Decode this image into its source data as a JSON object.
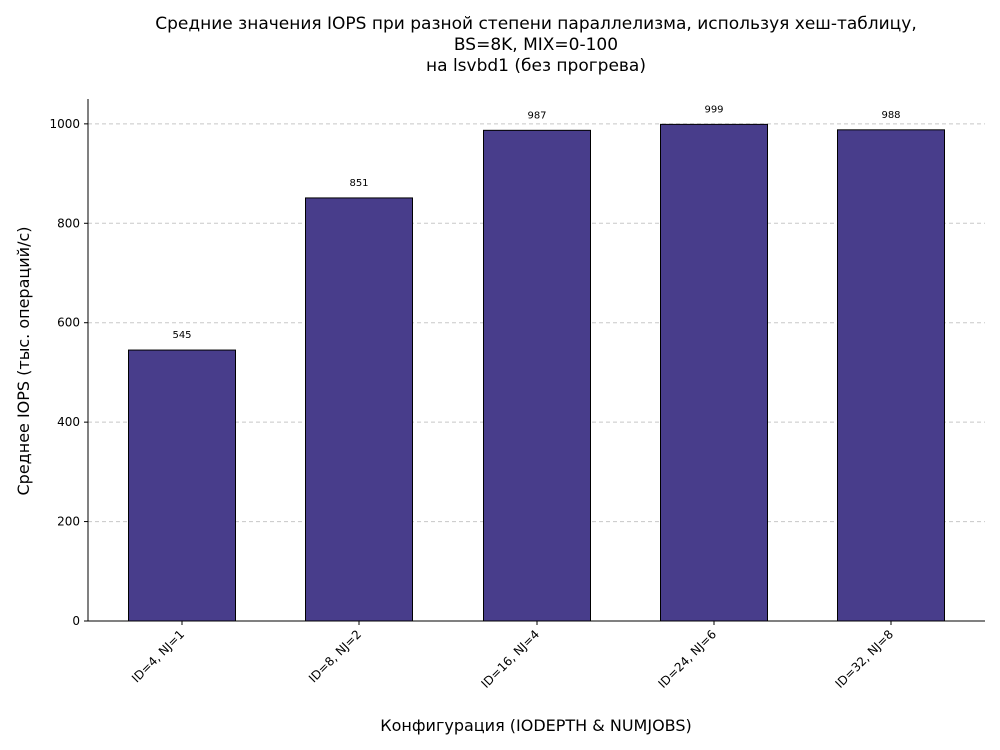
{
  "chart_data": {
    "type": "bar",
    "title_lines": [
      "Средние значения IOPS при разной степени параллелизма, используя хеш-таблицу,",
      "BS=8K, MIX=0-100",
      "на lsvbd1 (без прогрева)"
    ],
    "xlabel": "Конфигурация (IODEPTH & NUMJOBS)",
    "ylabel": "Среднее IOPS (тыс. операций/с)",
    "categories": [
      "ID=4, NJ=1",
      "ID=8, NJ=2",
      "ID=16, NJ=4",
      "ID=24, NJ=6",
      "ID=32, NJ=8"
    ],
    "values": [
      545,
      851,
      987,
      999,
      988
    ],
    "data_labels": [
      "545",
      "851",
      "987",
      "999",
      "988"
    ],
    "ylim": [
      0,
      1050
    ],
    "yticks": [
      0,
      200,
      400,
      600,
      800,
      1000
    ],
    "ytick_labels": [
      "0",
      "200",
      "400",
      "600",
      "800",
      "1000"
    ],
    "grid": "y-dashed",
    "bar_color": "#483D8B",
    "bar_edge_color": "#000000"
  }
}
